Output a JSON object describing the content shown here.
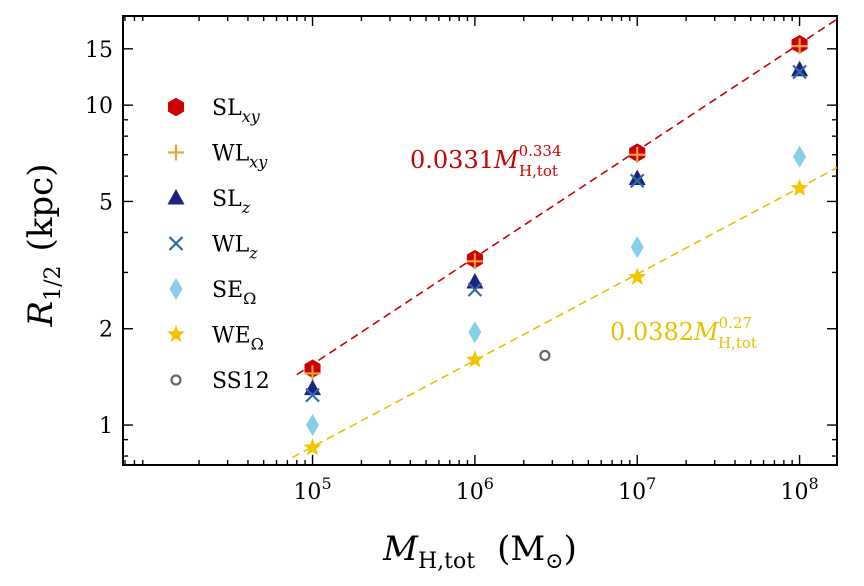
{
  "chart_data": {
    "type": "scatter",
    "xscale": "log",
    "yscale": "log",
    "xlabel": "M_H,tot (M_⊙)",
    "ylabel": "R_1/2 (kpc)",
    "xlim": [
      6800,
      170000000
    ],
    "ylim": [
      0.75,
      19
    ],
    "xticks": [
      {
        "value": 100000,
        "base": "10",
        "exp": "5"
      },
      {
        "value": 1000000,
        "base": "10",
        "exp": "6"
      },
      {
        "value": 10000000,
        "base": "10",
        "exp": "7"
      },
      {
        "value": 100000000,
        "base": "10",
        "exp": "8"
      }
    ],
    "yticks": [
      {
        "value": 1,
        "label": "1"
      },
      {
        "value": 2,
        "label": "2"
      },
      {
        "value": 5,
        "label": "5"
      },
      {
        "value": 10,
        "label": "10"
      },
      {
        "value": 15,
        "label": "15"
      }
    ],
    "series": [
      {
        "name": "SL_xy",
        "main": "SL",
        "sub": "xy",
        "marker": "hexagon",
        "color": "#cc0000",
        "x": [
          100000,
          1000000,
          10000000,
          100000000
        ],
        "y": [
          1.5,
          3.3,
          7.1,
          15.5
        ]
      },
      {
        "name": "WL_xy",
        "main": "WL",
        "sub": "xy",
        "marker": "plus",
        "color": "#f0a040",
        "x": [
          100000,
          1000000,
          10000000,
          100000000
        ],
        "y": [
          1.45,
          3.25,
          7.0,
          15.3
        ]
      },
      {
        "name": "SL_z",
        "main": "SL",
        "sub": "z",
        "marker": "triangle",
        "color": "#1a237e",
        "x": [
          100000,
          1000000,
          10000000,
          100000000
        ],
        "y": [
          1.3,
          2.8,
          5.9,
          12.9
        ]
      },
      {
        "name": "WL_z",
        "main": "WL",
        "sub": "z",
        "marker": "x",
        "color": "#3366aa",
        "x": [
          100000,
          1000000,
          10000000,
          100000000
        ],
        "y": [
          1.24,
          2.65,
          5.8,
          12.7
        ]
      },
      {
        "name": "SE_Ω",
        "main": "SE",
        "sub": "Ω",
        "marker": "diamond",
        "color": "#87ceeb",
        "x": [
          100000,
          1000000,
          10000000,
          100000000
        ],
        "y": [
          1.0,
          1.95,
          3.6,
          6.9
        ]
      },
      {
        "name": "WE_Ω",
        "main": "WE",
        "sub": "Ω",
        "marker": "star",
        "color": "#f5c400",
        "x": [
          100000,
          1000000,
          10000000,
          100000000
        ],
        "y": [
          0.85,
          1.6,
          2.9,
          5.5
        ]
      },
      {
        "name": "SS12",
        "main": "SS12",
        "sub": "",
        "marker": "circle-open",
        "color": "#666666",
        "x": [
          2700000
        ],
        "y": [
          1.65
        ]
      }
    ],
    "fits": [
      {
        "name": "fit-strong",
        "coef": 0.0331,
        "exp": 0.334,
        "coef_label": "0.0331",
        "exp_label": "0.334",
        "sub_label": "H,tot",
        "color": "#cc0000",
        "x_range": [
          80000,
          170000000
        ]
      },
      {
        "name": "fit-weak",
        "coef": 0.0382,
        "exp": 0.27,
        "coef_label": "0.0382",
        "exp_label": "0.27",
        "sub_label": "H,tot",
        "color": "#e6c200",
        "x_range": [
          75000,
          170000000
        ]
      }
    ]
  }
}
